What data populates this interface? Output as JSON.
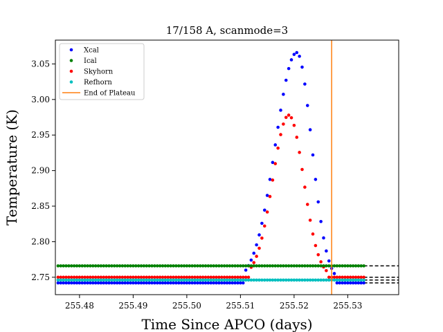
{
  "chart_data": {
    "type": "scatter",
    "title": "17/158 A, scanmode=3",
    "xlabel": "Time Since APCO (days)",
    "ylabel": "Temperature (K)",
    "xlim": [
      255.4755,
      255.5395
    ],
    "ylim": [
      2.7255,
      3.0835
    ],
    "xticks": [
      255.48,
      255.49,
      255.5,
      255.51,
      255.52,
      255.53
    ],
    "xtick_labels": [
      "255.48",
      "255.49",
      "255.50",
      "255.51",
      "255.52",
      "255.53"
    ],
    "yticks": [
      2.75,
      2.8,
      2.85,
      2.9,
      2.95,
      3.0,
      3.05
    ],
    "ytick_labels": [
      "2.75",
      "2.80",
      "2.85",
      "2.90",
      "2.95",
      "3.00",
      "3.05"
    ],
    "grid": false,
    "legend_position": "top-left",
    "data_x_end": 255.533,
    "series": [
      {
        "name": "Xcal",
        "color": "#0000ff",
        "baseline": 2.742,
        "peak": {
          "x": 255.5205,
          "y": 3.066,
          "start": 255.5105,
          "end": 255.5275
        },
        "reference_line": 2.742
      },
      {
        "name": "Ical",
        "color": "#008000",
        "baseline": 2.766,
        "reference_line": 2.766
      },
      {
        "name": "Skyhorn",
        "color": "#ff0000",
        "baseline": 2.75,
        "peak": {
          "x": 255.519,
          "y": 2.978,
          "start": 255.5115,
          "end": 255.526
        },
        "reference_line": 2.75
      },
      {
        "name": "Refhorn",
        "color": "#00bfbf",
        "baseline": 2.746,
        "reference_line": 2.746
      }
    ],
    "vertical_lines": [
      {
        "name": "End of Plateau",
        "x": 255.527,
        "color": "#ff7f0e"
      }
    ]
  }
}
